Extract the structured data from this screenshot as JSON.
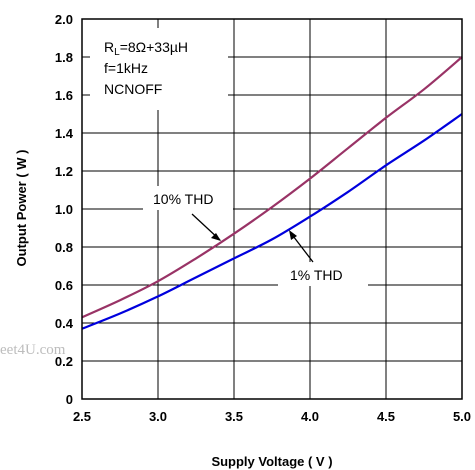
{
  "chart_data": {
    "type": "line",
    "xlabel": "Supply Voltage ( V )",
    "ylabel": "Output Power ( W )",
    "xlim": [
      2.5,
      5.0
    ],
    "ylim": [
      0,
      2.0
    ],
    "x_ticks": [
      "2.5",
      "3.0",
      "3.5",
      "4.0",
      "4.5",
      "5.0"
    ],
    "y_ticks": [
      "0",
      "0.2",
      "0.4",
      "0.6",
      "0.8",
      "1.0",
      "1.2",
      "1.4",
      "1.6",
      "1.8",
      "2.0"
    ],
    "grid": true,
    "conditions": {
      "rl_main": "R",
      "rl_sub": "L",
      "rl_value": "=8Ω+33µH",
      "freq": "f=1kHz",
      "mode": "NCNOFF"
    },
    "series": [
      {
        "name": "10% THD",
        "color": "#993366",
        "x": [
          2.5,
          2.75,
          3.0,
          3.25,
          3.5,
          3.75,
          4.0,
          4.25,
          4.5,
          4.75,
          5.0
        ],
        "values": [
          0.43,
          0.52,
          0.62,
          0.74,
          0.87,
          1.01,
          1.16,
          1.32,
          1.48,
          1.63,
          1.8
        ]
      },
      {
        "name": "1% THD",
        "color": "#0000dd",
        "x": [
          2.5,
          2.75,
          3.0,
          3.25,
          3.5,
          3.75,
          4.0,
          4.25,
          4.5,
          4.75,
          5.0
        ],
        "values": [
          0.37,
          0.45,
          0.54,
          0.64,
          0.74,
          0.84,
          0.96,
          1.09,
          1.23,
          1.36,
          1.5
        ]
      }
    ],
    "watermark": "eet4U.com"
  }
}
